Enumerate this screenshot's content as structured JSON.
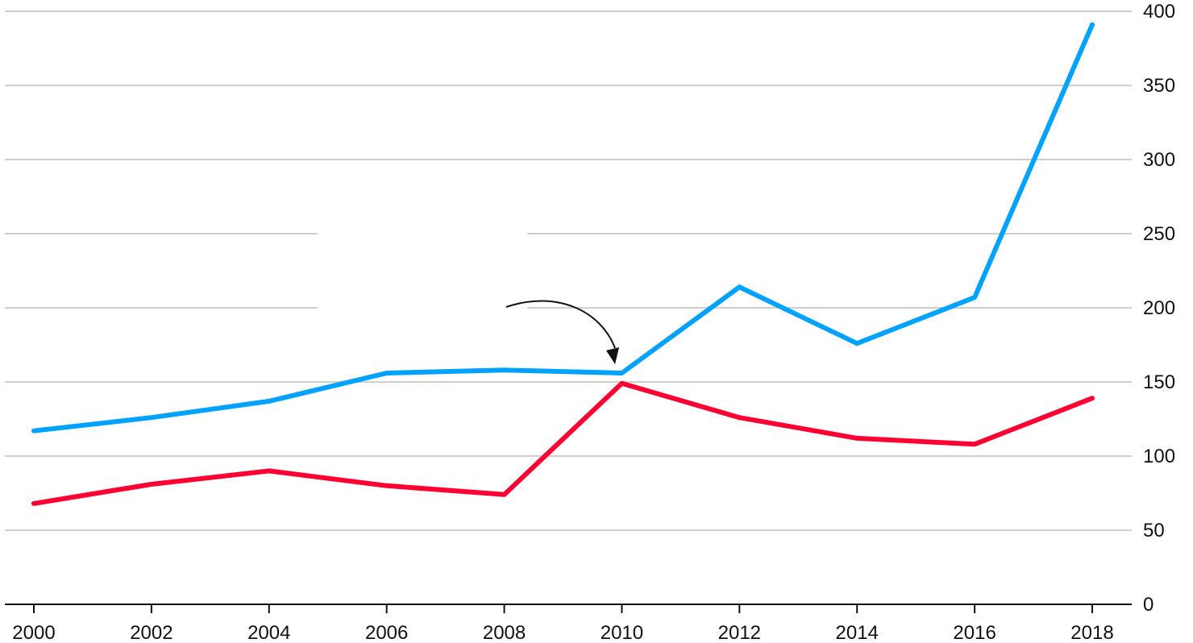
{
  "chart_data": {
    "type": "line",
    "title": "",
    "xlabel": "",
    "ylabel": "",
    "x": [
      2000,
      2002,
      2004,
      2006,
      2008,
      2010,
      2012,
      2014,
      2016,
      2018
    ],
    "x_tick_labels": [
      "2000",
      "2002",
      "2004",
      "2006",
      "2008",
      "2010",
      "2012",
      "2014",
      "2016",
      "2018"
    ],
    "y_ticks": [
      0,
      50,
      100,
      150,
      200,
      250,
      300,
      350,
      400
    ],
    "y_tick_labels": [
      "0",
      "50",
      "100",
      "150",
      "200",
      "250",
      "300",
      "350",
      "400"
    ],
    "ylim": [
      0,
      400
    ],
    "y_axis_side": "right",
    "grid": true,
    "legend": "none",
    "series": [
      {
        "color": "#00a2ff",
        "values": [
          117,
          126,
          137,
          156,
          158,
          156,
          214,
          176,
          207,
          391
        ]
      },
      {
        "color": "#ff0033",
        "values": [
          68,
          81,
          90,
          80,
          74,
          149,
          126,
          112,
          108,
          139
        ]
      }
    ],
    "annotation": {
      "type": "arrow",
      "points_to": {
        "x": 2010,
        "y": 156
      }
    }
  }
}
